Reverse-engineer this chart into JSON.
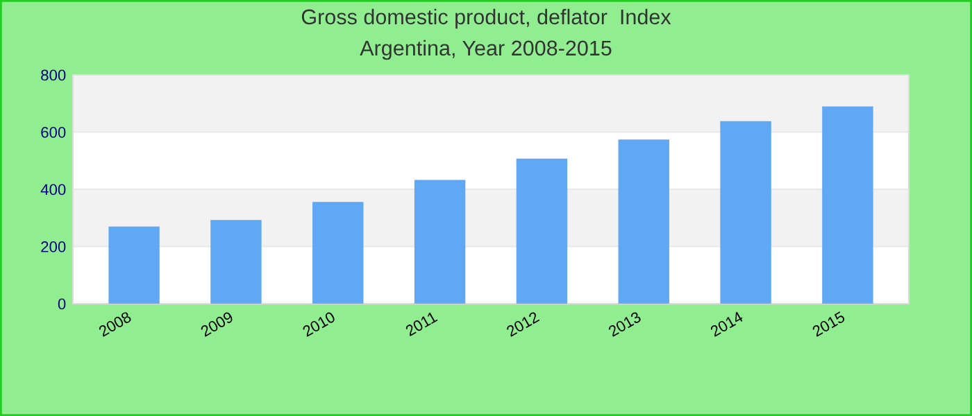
{
  "chart_data": {
    "type": "bar",
    "title": "Gross domestic product, deflator  Index",
    "subtitle": "Argentina, Year 2008-2015",
    "categories": [
      "2008",
      "2009",
      "2010",
      "2011",
      "2012",
      "2013",
      "2014",
      "2015"
    ],
    "values": [
      270,
      293,
      356,
      433,
      507,
      574,
      638,
      690
    ],
    "color": "#61a8f4",
    "ylim": [
      0,
      800
    ],
    "yticks": [
      0,
      200,
      400,
      600,
      800
    ],
    "grid": "y",
    "legend": false
  }
}
